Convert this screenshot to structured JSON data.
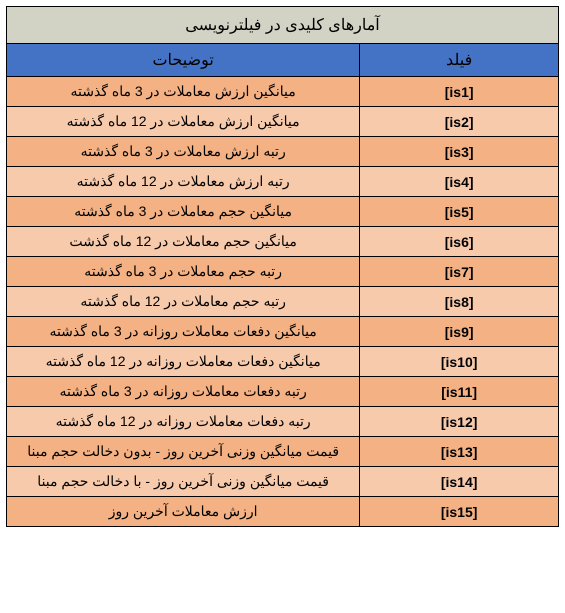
{
  "title": "آمارهای کلیدی در فیلترنویسی",
  "columns": {
    "field": "فیلد",
    "description": "توضیحات"
  },
  "rows": [
    {
      "field": "[is1]",
      "description": "میانگین ارزش معاملات در 3 ماه گذشته"
    },
    {
      "field": "[is2]",
      "description": "میانگین ارزش معاملات در 12 ماه گذشته"
    },
    {
      "field": "[is3]",
      "description": "رتبه ارزش معاملات در 3 ماه گذشته"
    },
    {
      "field": "[is4]",
      "description": "رتبه ارزش معاملات در 12 ماه گذشته"
    },
    {
      "field": "[is5]",
      "description": "میانگین حجم معاملات در 3 ماه گذشته"
    },
    {
      "field": "[is6]",
      "description": "میانگین حجم معاملات در 12 ماه گذشت"
    },
    {
      "field": "[is7]",
      "description": "رتبه حجم معاملات در 3 ماه گذشته"
    },
    {
      "field": "[is8]",
      "description": "رتبه حجم معاملات در 12 ماه گذشته"
    },
    {
      "field": "[is9]",
      "description": "میانگین دفعات معاملات روزانه در 3 ماه گذشته"
    },
    {
      "field": "[is10]",
      "description": "میانگین دفعات معاملات روزانه در 12 ماه گذشته"
    },
    {
      "field": "[is11]",
      "description": "رتبه دفعات معاملات روزانه در 3 ماه گذشته"
    },
    {
      "field": "[is12]",
      "description": "رتبه دفعات معاملات روزانه در 12 ماه گذشته"
    },
    {
      "field": "[is13]",
      "description": "قیمت میانگین وزنی آخرین روز - بدون دخالت حجم مبنا"
    },
    {
      "field": "[is14]",
      "description": "قیمت میانگین وزنی آخرین روز - با دخالت حجم مبنا"
    },
    {
      "field": "[is15]",
      "description": "ارزش معاملات آخرین روز"
    }
  ],
  "style": {
    "title_bg": "#d2d2c5",
    "header_bg": "#4472c4",
    "row_odd_bg": "#f4b183",
    "row_even_bg": "#f7caac",
    "border_color": "#000000",
    "field_col_width_pct": 36
  }
}
